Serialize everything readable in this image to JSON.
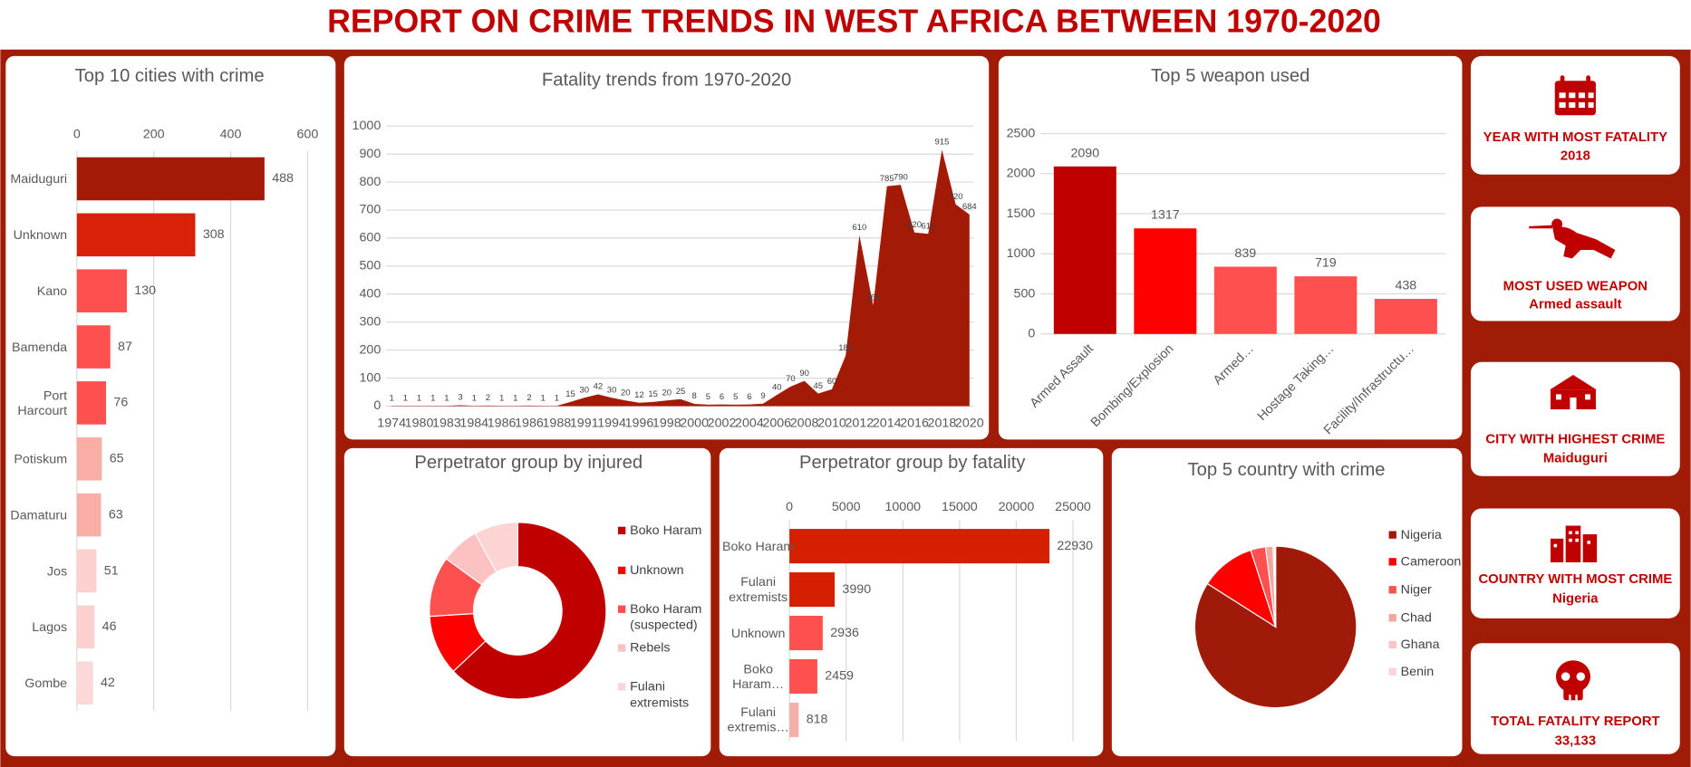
{
  "title": "REPORT ON CRIME TRENDS IN WEST AFRICA BETWEEN 1970-2020",
  "chart_data": [
    {
      "type": "barh",
      "title": "Top 10 cities with crime",
      "categories": [
        "Maiduguri",
        "Unknown",
        "Kano",
        "Bamenda",
        "Port Harcourt",
        "Potiskum",
        "Damaturu",
        "Jos",
        "Lagos",
        "Gombe"
      ],
      "values": [
        488,
        308,
        130,
        87,
        76,
        65,
        63,
        51,
        46,
        42
      ],
      "colors": [
        "#a31a06",
        "#d9210a",
        "#ff5050",
        "#ff5050",
        "#ff5050",
        "#f8aea4",
        "#f8aea4",
        "#fdd0d0",
        "#fdd0d0",
        "#fdd8d8"
      ],
      "xlim": [
        0,
        600
      ],
      "xticks": [
        0,
        200,
        400,
        600
      ],
      "grid": true
    },
    {
      "type": "area",
      "title": "Fatality trends from 1970-2020",
      "categories": [
        "1974",
        null,
        "1980",
        null,
        "1983",
        null,
        "1984",
        null,
        "1986",
        null,
        "1986",
        null,
        "1988",
        null,
        "1991",
        null,
        "1994",
        null,
        "1996",
        null,
        "1998",
        null,
        "2000",
        null,
        "2002",
        null,
        "2004",
        null,
        "2006",
        null,
        "2008",
        null,
        "2010",
        null,
        "2012",
        null,
        "2014",
        null,
        "2016",
        null,
        "2018",
        null,
        "2020"
      ],
      "values": [
        1,
        1,
        1,
        1,
        1,
        3,
        1,
        2,
        1,
        1,
        2,
        1,
        1,
        15,
        30,
        42,
        30,
        20,
        12,
        15,
        20,
        25,
        8,
        5,
        6,
        5,
        6,
        9,
        40,
        70,
        90,
        45,
        60,
        180,
        610,
        360,
        785,
        790,
        620,
        615,
        915,
        720,
        684
      ],
      "color": "#a31a06",
      "ylim": [
        0,
        1000
      ],
      "yticks": [
        0,
        100,
        200,
        300,
        400,
        500,
        600,
        700,
        800,
        900,
        1000
      ],
      "grid": true
    },
    {
      "type": "bar",
      "title": "Top 5 weapon used",
      "categories": [
        "Armed Assault",
        "Bombing/Explosion",
        "Armed…",
        "Hostage Taking…",
        "Facility/Infrastructu…"
      ],
      "values": [
        2090,
        1317,
        839,
        719,
        438
      ],
      "colors": [
        "#c00000",
        "#ff0000",
        "#ff5050",
        "#ff5050",
        "#ff5050"
      ],
      "ylim": [
        0,
        2500
      ],
      "yticks": [
        0,
        500,
        1000,
        1500,
        2000,
        2500
      ],
      "grid": true
    },
    {
      "type": "donut",
      "title": "Perpetrator group by injured",
      "categories": [
        "Boko Haram",
        "Unknown",
        "Boko Haram (suspected)",
        "Rebels",
        "Fulani extremists"
      ],
      "values": [
        63,
        11,
        11,
        7,
        8
      ],
      "colors": [
        "#c00000",
        "#ff0000",
        "#ff5050",
        "#fcc2c2",
        "#fcd4d4"
      ],
      "legend": "right"
    },
    {
      "type": "barh",
      "title": "Perpetrator group by fatality",
      "categories": [
        "Boko Haram",
        "Fulani extremists",
        "Unknown",
        "Boko Haram…",
        "Fulani extremis…"
      ],
      "values": [
        22930,
        3990,
        2936,
        2459,
        818
      ],
      "colors": [
        "#d42000",
        "#d42000",
        "#ff5050",
        "#ff5050",
        "#f4b0a8"
      ],
      "xlim": [
        0,
        25000
      ],
      "xticks": [
        0,
        5000,
        10000,
        15000,
        20000,
        25000
      ],
      "grid": true
    },
    {
      "type": "pie",
      "title": "Top 5 country with crime",
      "categories": [
        "Nigeria",
        "Cameroon",
        "Niger",
        "Chad",
        "Ghana",
        "Benin"
      ],
      "values": [
        84,
        11,
        3,
        1.5,
        0.3,
        0.2
      ],
      "colors": [
        "#a01a0a",
        "#ff0000",
        "#ff5050",
        "#f4a6a0",
        "#fcc6c6",
        "#fcd4d4"
      ],
      "legend": "right"
    }
  ],
  "kpi_cards": [
    {
      "label": "YEAR WITH MOST FATALITY",
      "value": "2018"
    },
    {
      "label": "MOST USED WEAPON",
      "value": "Armed assault"
    },
    {
      "label": "CITY WITH HIGHEST CRIME",
      "value": "Maiduguri"
    },
    {
      "label": "COUNTRY WITH MOST CRIME",
      "value": "Nigeria"
    },
    {
      "label": "TOTAL FATALITY REPORT",
      "value": "33,133"
    }
  ]
}
